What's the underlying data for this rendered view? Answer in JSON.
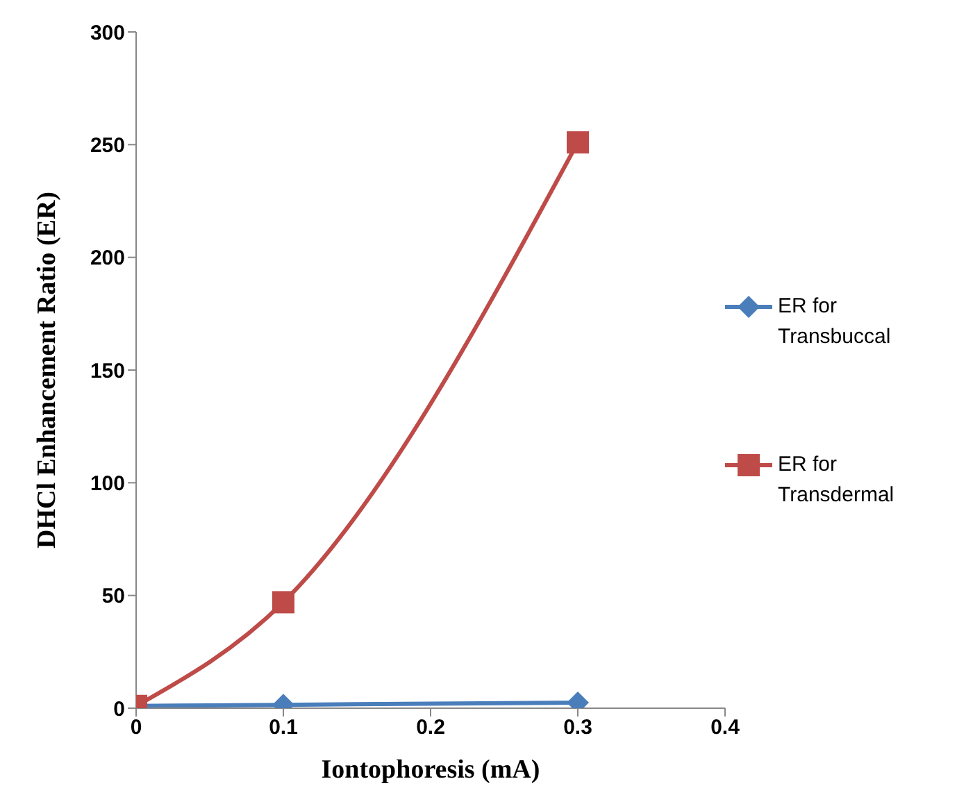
{
  "chart_data": {
    "type": "line",
    "xlabel": "Iontophoresis (mA)",
    "ylabel": "DHCl Enhancement Ratio (ER)",
    "x": [
      0,
      0.1,
      0.3
    ],
    "series": [
      {
        "name": "ER for Transbuccal",
        "color": "#4a7ebb",
        "values": [
          1,
          1.5,
          2.5
        ],
        "marker": "diamond"
      },
      {
        "name": "ER for Transdermal",
        "color": "#be4b48",
        "values": [
          1,
          47,
          251
        ],
        "marker": "square"
      }
    ],
    "xlim": [
      0,
      0.4
    ],
    "xticks": [
      0,
      0.1,
      0.2,
      0.3,
      0.4
    ],
    "ylim": [
      0,
      300
    ],
    "yticks": [
      0,
      50,
      100,
      150,
      200,
      250,
      300
    ],
    "grid": false,
    "legend": "right",
    "line_style": "solid"
  }
}
